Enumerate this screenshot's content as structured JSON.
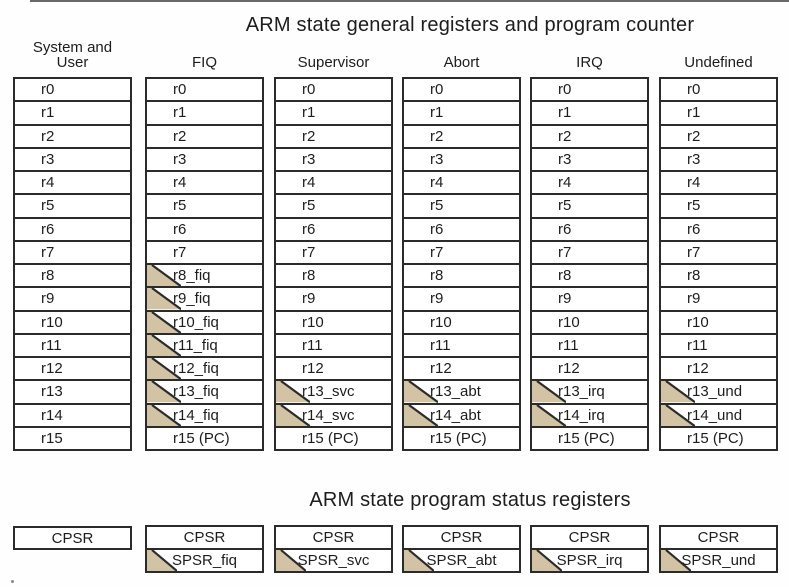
{
  "titles": {
    "general": "ARM state general registers and program counter",
    "status": "ARM state program status registers"
  },
  "columns": [
    {
      "header": "System and User",
      "registers": [
        {
          "label": "r0",
          "banked": false
        },
        {
          "label": "r1",
          "banked": false
        },
        {
          "label": "r2",
          "banked": false
        },
        {
          "label": "r3",
          "banked": false
        },
        {
          "label": "r4",
          "banked": false
        },
        {
          "label": "r5",
          "banked": false
        },
        {
          "label": "r6",
          "banked": false
        },
        {
          "label": "r7",
          "banked": false
        },
        {
          "label": "r8",
          "banked": false
        },
        {
          "label": "r9",
          "banked": false
        },
        {
          "label": "r10",
          "banked": false
        },
        {
          "label": "r11",
          "banked": false
        },
        {
          "label": "r12",
          "banked": false
        },
        {
          "label": "r13",
          "banked": false
        },
        {
          "label": "r14",
          "banked": false
        },
        {
          "label": "r15",
          "banked": false
        }
      ],
      "status": [
        {
          "label": "CPSR",
          "banked": false
        }
      ]
    },
    {
      "header": "FIQ",
      "registers": [
        {
          "label": "r0",
          "banked": false
        },
        {
          "label": "r1",
          "banked": false
        },
        {
          "label": "r2",
          "banked": false
        },
        {
          "label": "r3",
          "banked": false
        },
        {
          "label": "r4",
          "banked": false
        },
        {
          "label": "r5",
          "banked": false
        },
        {
          "label": "r6",
          "banked": false
        },
        {
          "label": "r7",
          "banked": false
        },
        {
          "label": "r8_fiq",
          "banked": true
        },
        {
          "label": "r9_fiq",
          "banked": true
        },
        {
          "label": "r10_fiq",
          "banked": true
        },
        {
          "label": "r11_fiq",
          "banked": true
        },
        {
          "label": "r12_fiq",
          "banked": true
        },
        {
          "label": "r13_fiq",
          "banked": true
        },
        {
          "label": "r14_fiq",
          "banked": true
        },
        {
          "label": "r15 (PC)",
          "banked": false
        }
      ],
      "status": [
        {
          "label": "CPSR",
          "banked": false
        },
        {
          "label": "SPSR_fiq",
          "banked": true
        }
      ]
    },
    {
      "header": "Supervisor",
      "registers": [
        {
          "label": "r0",
          "banked": false
        },
        {
          "label": "r1",
          "banked": false
        },
        {
          "label": "r2",
          "banked": false
        },
        {
          "label": "r3",
          "banked": false
        },
        {
          "label": "r4",
          "banked": false
        },
        {
          "label": "r5",
          "banked": false
        },
        {
          "label": "r6",
          "banked": false
        },
        {
          "label": "r7",
          "banked": false
        },
        {
          "label": "r8",
          "banked": false
        },
        {
          "label": "r9",
          "banked": false
        },
        {
          "label": "r10",
          "banked": false
        },
        {
          "label": "r11",
          "banked": false
        },
        {
          "label": "r12",
          "banked": false
        },
        {
          "label": "r13_svc",
          "banked": true
        },
        {
          "label": "r14_svc",
          "banked": true
        },
        {
          "label": "r15 (PC)",
          "banked": false
        }
      ],
      "status": [
        {
          "label": "CPSR",
          "banked": false
        },
        {
          "label": "SPSR_svc",
          "banked": true
        }
      ]
    },
    {
      "header": "Abort",
      "registers": [
        {
          "label": "r0",
          "banked": false
        },
        {
          "label": "r1",
          "banked": false
        },
        {
          "label": "r2",
          "banked": false
        },
        {
          "label": "r3",
          "banked": false
        },
        {
          "label": "r4",
          "banked": false
        },
        {
          "label": "r5",
          "banked": false
        },
        {
          "label": "r6",
          "banked": false
        },
        {
          "label": "r7",
          "banked": false
        },
        {
          "label": "r8",
          "banked": false
        },
        {
          "label": "r9",
          "banked": false
        },
        {
          "label": "r10",
          "banked": false
        },
        {
          "label": "r11",
          "banked": false
        },
        {
          "label": "r12",
          "banked": false
        },
        {
          "label": "r13_abt",
          "banked": true
        },
        {
          "label": "r14_abt",
          "banked": true
        },
        {
          "label": "r15 (PC)",
          "banked": false
        }
      ],
      "status": [
        {
          "label": "CPSR",
          "banked": false
        },
        {
          "label": "SPSR_abt",
          "banked": true
        }
      ]
    },
    {
      "header": "IRQ",
      "registers": [
        {
          "label": "r0",
          "banked": false
        },
        {
          "label": "r1",
          "banked": false
        },
        {
          "label": "r2",
          "banked": false
        },
        {
          "label": "r3",
          "banked": false
        },
        {
          "label": "r4",
          "banked": false
        },
        {
          "label": "r5",
          "banked": false
        },
        {
          "label": "r6",
          "banked": false
        },
        {
          "label": "r7",
          "banked": false
        },
        {
          "label": "r8",
          "banked": false
        },
        {
          "label": "r9",
          "banked": false
        },
        {
          "label": "r10",
          "banked": false
        },
        {
          "label": "r11",
          "banked": false
        },
        {
          "label": "r12",
          "banked": false
        },
        {
          "label": "r13_irq",
          "banked": true
        },
        {
          "label": "r14_irq",
          "banked": true
        },
        {
          "label": "r15 (PC)",
          "banked": false
        }
      ],
      "status": [
        {
          "label": "CPSR",
          "banked": false
        },
        {
          "label": "SPSR_irq",
          "banked": true
        }
      ]
    },
    {
      "header": "Undefined",
      "registers": [
        {
          "label": "r0",
          "banked": false
        },
        {
          "label": "r1",
          "banked": false
        },
        {
          "label": "r2",
          "banked": false
        },
        {
          "label": "r3",
          "banked": false
        },
        {
          "label": "r4",
          "banked": false
        },
        {
          "label": "r5",
          "banked": false
        },
        {
          "label": "r6",
          "banked": false
        },
        {
          "label": "r7",
          "banked": false
        },
        {
          "label": "r8",
          "banked": false
        },
        {
          "label": "r9",
          "banked": false
        },
        {
          "label": "r10",
          "banked": false
        },
        {
          "label": "r11",
          "banked": false
        },
        {
          "label": "r12",
          "banked": false
        },
        {
          "label": "r13_und",
          "banked": true
        },
        {
          "label": "r14_und",
          "banked": true
        },
        {
          "label": "r15 (PC)",
          "banked": false
        }
      ],
      "status": [
        {
          "label": "CPSR",
          "banked": false
        },
        {
          "label": "SPSR_und",
          "banked": true
        }
      ]
    }
  ],
  "icons": {
    "banked_marker": "corner-triangle"
  },
  "colors": {
    "banked_marker_fill": "#d2c3a4",
    "border": "#2b2b2b",
    "background": "#fefefe",
    "text": "#1d1d1d"
  }
}
